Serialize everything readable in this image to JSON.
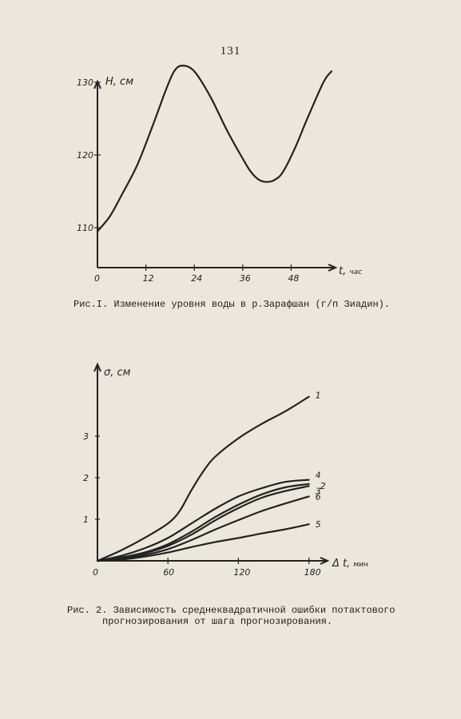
{
  "page_number": "131",
  "figure1": {
    "caption": "Рис.I. Изменение уровня воды в р.Зарафшан (г/п Зиадин).",
    "chart_data": {
      "type": "line",
      "xlabel": "t, час",
      "ylabel": "H, см",
      "x_ticks": [
        "0",
        "12",
        "24",
        "36",
        "48"
      ],
      "y_ticks": [
        "110",
        "120",
        "130"
      ],
      "xlim": [
        0,
        62
      ],
      "ylim": [
        104,
        137
      ],
      "series": [
        {
          "x": [
            0,
            3,
            6,
            10,
            14,
            17,
            19,
            21,
            24,
            28,
            32,
            36,
            38,
            40,
            42,
            44,
            46,
            49,
            52,
            56,
            58
          ],
          "y": [
            109.5,
            111.5,
            114.5,
            118.8,
            124.5,
            129,
            131.5,
            132.3,
            131.5,
            128,
            123.5,
            119.5,
            117.7,
            116.6,
            116.3,
            116.6,
            117.7,
            121,
            125,
            130,
            131.5
          ]
        }
      ]
    }
  },
  "figure2": {
    "caption_line1": "Рис. 2. Зависимость среднеквадратичной ошибки потактового",
    "caption_line2": "прогнозирования от шага прогнозирования.",
    "chart_data": {
      "type": "line",
      "xlabel": "Δ t, мин",
      "ylabel": "σ, см",
      "x_ticks": [
        "0",
        "60",
        "120",
        "180"
      ],
      "y_ticks": [
        "1",
        "2",
        "3"
      ],
      "xlim": [
        0,
        205
      ],
      "ylim": [
        0,
        4.7
      ],
      "series": [
        {
          "name": "1",
          "x": [
            0,
            20,
            40,
            60,
            70,
            80,
            90,
            100,
            120,
            140,
            160,
            180
          ],
          "y": [
            0,
            0.25,
            0.55,
            0.9,
            1.2,
            1.7,
            2.15,
            2.5,
            2.95,
            3.3,
            3.6,
            3.95
          ]
        },
        {
          "name": "4",
          "x": [
            0,
            20,
            40,
            60,
            80,
            100,
            120,
            140,
            160,
            180
          ],
          "y": [
            0,
            0.12,
            0.3,
            0.55,
            0.9,
            1.25,
            1.55,
            1.75,
            1.9,
            1.95
          ]
        },
        {
          "name": "2",
          "x": [
            0,
            20,
            40,
            60,
            80,
            100,
            120,
            140,
            160,
            180
          ],
          "y": [
            0,
            0.08,
            0.2,
            0.4,
            0.7,
            1.05,
            1.35,
            1.6,
            1.77,
            1.85
          ]
        },
        {
          "name": "3",
          "x": [
            0,
            20,
            40,
            60,
            80,
            100,
            120,
            140,
            160,
            180
          ],
          "y": [
            0,
            0.07,
            0.18,
            0.36,
            0.63,
            0.97,
            1.27,
            1.52,
            1.68,
            1.8
          ]
        },
        {
          "name": "6",
          "x": [
            0,
            20,
            40,
            60,
            80,
            100,
            120,
            140,
            160,
            180
          ],
          "y": [
            0,
            0.05,
            0.14,
            0.28,
            0.5,
            0.75,
            0.98,
            1.2,
            1.38,
            1.55
          ]
        },
        {
          "name": "5",
          "x": [
            0,
            20,
            40,
            60,
            80,
            100,
            120,
            140,
            160,
            180
          ],
          "y": [
            0,
            0.03,
            0.1,
            0.2,
            0.33,
            0.45,
            0.55,
            0.66,
            0.76,
            0.88
          ]
        }
      ]
    }
  }
}
